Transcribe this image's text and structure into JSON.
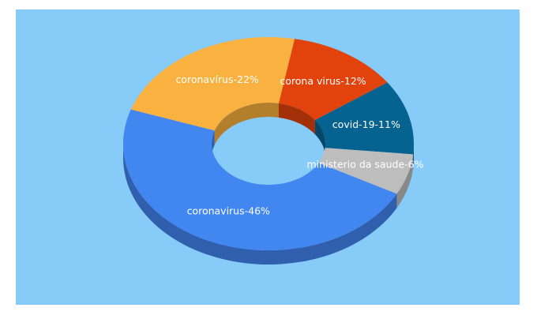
{
  "chart_data": {
    "type": "pie",
    "donut": true,
    "categories": [
      "coronavirus",
      "coronavírus",
      "corona virus",
      "covid-19",
      "ministerio da saude"
    ],
    "values": [
      46,
      22,
      12,
      11,
      6
    ],
    "value_labels": [
      "coronavirus-46%",
      "coronavírus-22%",
      "corona virus-12%",
      "covid-19-11%",
      "ministerio da saude-6%"
    ],
    "colors": [
      "#4286f0",
      "#f9b13f",
      "#e2430c",
      "#06628f",
      "#bdbdbd"
    ]
  }
}
